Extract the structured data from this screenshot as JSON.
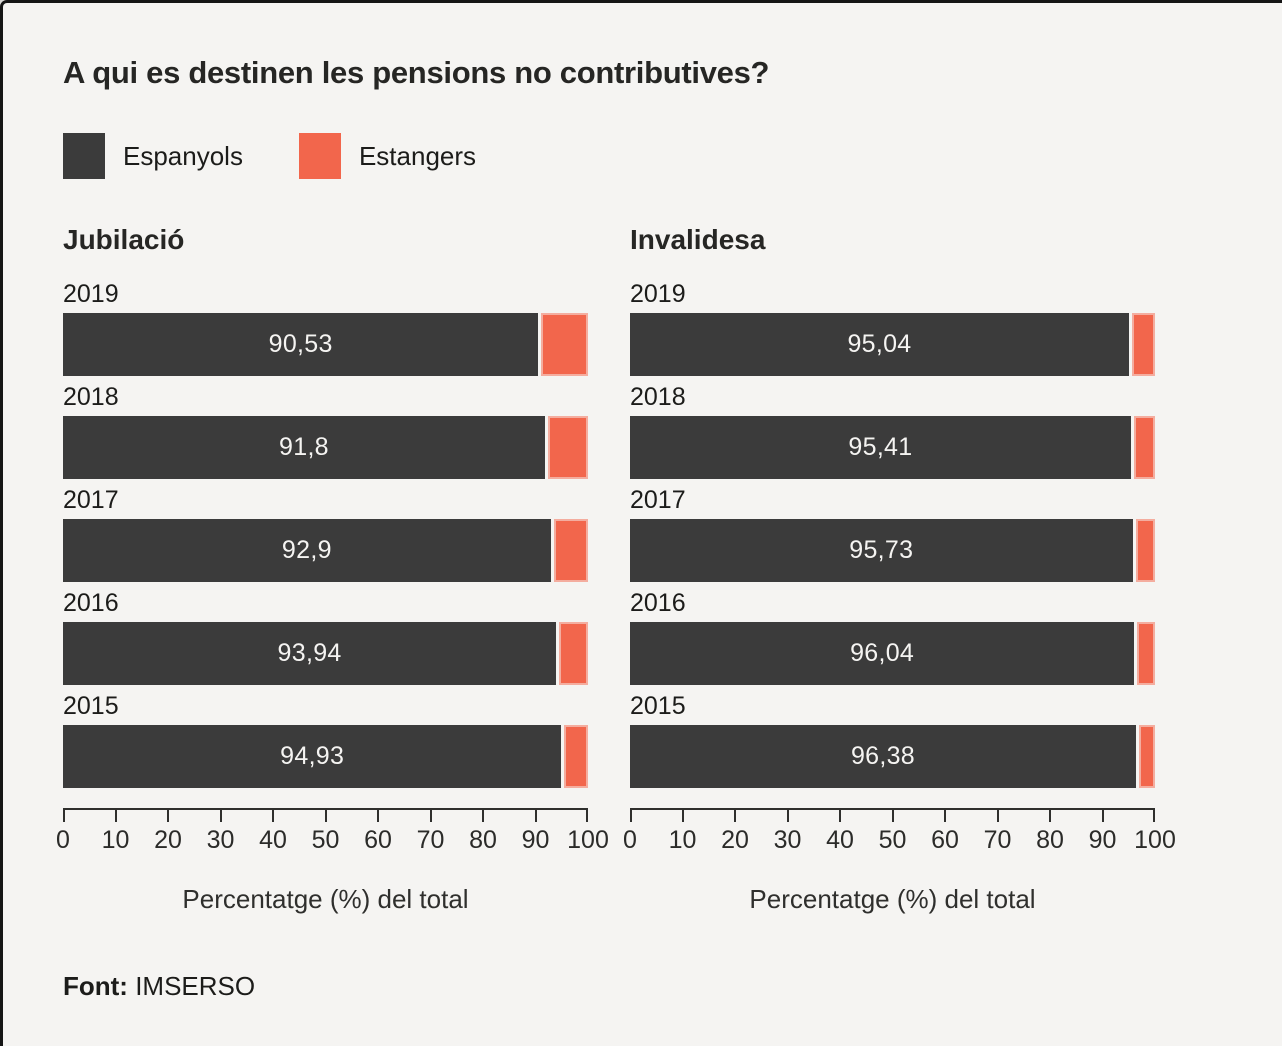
{
  "page": {
    "title": "A qui es destinen les pensions no contributives?",
    "source_label": "Font:",
    "source_value": "IMSERSO"
  },
  "colors": {
    "background": "#f5f4f2",
    "dark": "#3b3b3b",
    "orange": "#f2664c",
    "axis": "#2f2f2d"
  },
  "legend": [
    {
      "label": "Espanyols",
      "color": "#3b3b3b"
    },
    {
      "label": "Estangers",
      "color": "#f2664c"
    }
  ],
  "chart_data": [
    {
      "type": "bar",
      "orientation": "horizontal",
      "stacked": true,
      "title": "Jubilació",
      "categories": [
        "2019",
        "2018",
        "2017",
        "2016",
        "2015"
      ],
      "series": [
        {
          "name": "Espanyols",
          "values": [
            90.53,
            91.8,
            92.9,
            93.94,
            94.93
          ],
          "labels": [
            "90,53",
            "91,8",
            "92,9",
            "93,94",
            "94,93"
          ]
        },
        {
          "name": "Estangers",
          "values": [
            9.47,
            8.2,
            7.1,
            6.06,
            5.07
          ]
        }
      ],
      "xlabel": "Percentatge (%) del total",
      "xlim": [
        0,
        100
      ],
      "xticks": [
        0,
        10,
        20,
        30,
        40,
        50,
        60,
        70,
        80,
        90,
        100
      ],
      "grid": false,
      "legend_position": "top"
    },
    {
      "type": "bar",
      "orientation": "horizontal",
      "stacked": true,
      "title": "Invalidesa",
      "categories": [
        "2019",
        "2018",
        "2017",
        "2016",
        "2015"
      ],
      "series": [
        {
          "name": "Espanyols",
          "values": [
            95.04,
            95.41,
            95.73,
            96.04,
            96.38
          ],
          "labels": [
            "95,04",
            "95,41",
            "95,73",
            "96,04",
            "96,38"
          ]
        },
        {
          "name": "Estangers",
          "values": [
            4.96,
            4.59,
            4.27,
            3.96,
            3.62
          ]
        }
      ],
      "xlabel": "Percentatge (%) del total",
      "xlim": [
        0,
        100
      ],
      "xticks": [
        0,
        10,
        20,
        30,
        40,
        50,
        60,
        70,
        80,
        90,
        100
      ],
      "grid": false,
      "legend_position": "top"
    }
  ]
}
